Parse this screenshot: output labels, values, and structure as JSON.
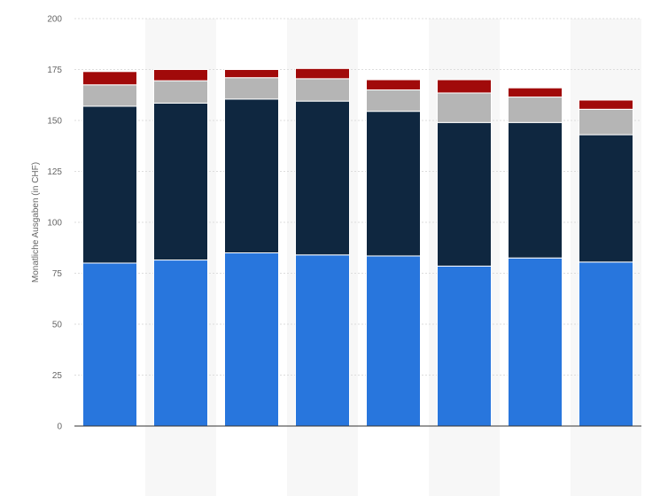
{
  "chart_data": {
    "type": "bar",
    "stacked": true,
    "title": "",
    "xlabel": "",
    "ylabel": "Monatliche Ausgaben (in CHF)",
    "ylim": [
      0,
      200
    ],
    "yticks": [
      "0",
      "25",
      "50",
      "75",
      "100",
      "125",
      "150",
      "175",
      "200"
    ],
    "categories": [
      "",
      "",
      "",
      "",
      "",
      "",
      "",
      ""
    ],
    "grid": true,
    "series": [
      {
        "color": "#2876dd",
        "values": [
          80,
          81.5,
          85,
          84,
          83.5,
          78.5,
          82.5,
          80.5
        ]
      },
      {
        "color": "#0f2740",
        "values": [
          77,
          77,
          75.5,
          75.5,
          71,
          70.5,
          66.5,
          62.5
        ]
      },
      {
        "color": "#b5b5b5",
        "values": [
          10.5,
          11,
          10.5,
          11,
          10.5,
          14.5,
          12.5,
          12.5
        ]
      },
      {
        "color": "#a10a0a",
        "values": [
          6.5,
          5.5,
          4,
          5,
          5,
          6.5,
          4.5,
          4.5
        ]
      }
    ]
  }
}
